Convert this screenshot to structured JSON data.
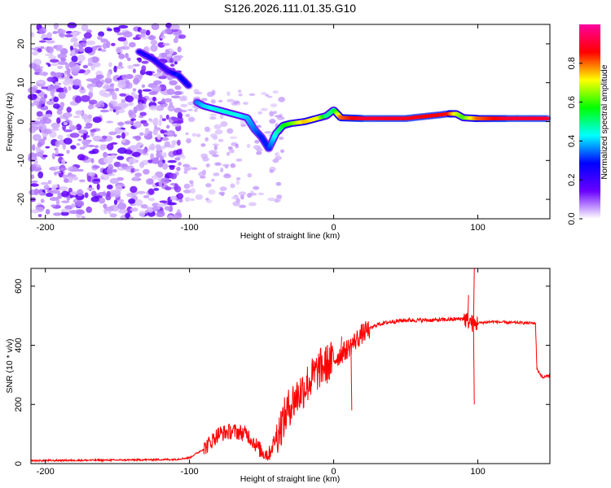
{
  "chart_data": [
    {
      "type": "heatmap",
      "title": "S126.2026.111.01.35.G10",
      "xlabel": "Height of straight line (km)",
      "ylabel": "Frequency (Hz)",
      "xlim": [
        -210,
        150
      ],
      "ylim": [
        -25,
        25
      ],
      "xticks": [
        -200,
        -100,
        0,
        100
      ],
      "yticks": [
        -20,
        -10,
        0,
        10,
        20
      ],
      "colorbar": {
        "label": "Normalized spectral amplitude",
        "range": [
          0.0,
          1.0
        ],
        "ticks": [
          "0.0",
          "0.2",
          "0.4",
          "0.6",
          "0.8"
        ],
        "colormap": [
          "#ffffff",
          "#6a00ff",
          "#0000ff",
          "#00ffff",
          "#00ff00",
          "#ffff00",
          "#ff0000",
          "#ff00a0"
        ]
      },
      "ridge": {
        "x": [
          -95,
          -90,
          -80,
          -70,
          -60,
          -55,
          -50,
          -45,
          -40,
          -35,
          -30,
          -20,
          -10,
          -5,
          0,
          5,
          20,
          50,
          80,
          85,
          90,
          100,
          120,
          150
        ],
        "freq": [
          5,
          4,
          3,
          2,
          1,
          -2,
          -4,
          -7,
          -3,
          -1,
          -0.5,
          0,
          1,
          1.5,
          3,
          1,
          0.8,
          0.8,
          2,
          2,
          1,
          0.8,
          0.8,
          0.8
        ],
        "amplitude": [
          0.35,
          0.4,
          0.45,
          0.45,
          0.4,
          0.35,
          0.3,
          0.3,
          0.45,
          0.55,
          0.6,
          0.75,
          0.7,
          0.5,
          0.5,
          0.8,
          0.9,
          0.88,
          0.85,
          0.7,
          0.6,
          0.8,
          0.9,
          0.9
        ]
      },
      "upper_branch": {
        "x": [
          -135,
          -125,
          -115,
          -108,
          -100
        ],
        "freq": [
          18,
          16,
          13,
          12,
          9
        ],
        "amplitude": [
          0.25,
          0.25,
          0.2,
          0.3,
          0.25
        ]
      },
      "noise_region": [
        -210,
        -105
      ]
    },
    {
      "type": "line",
      "xlabel": "Height of straight line (km)",
      "ylabel": "SNR (10 * v/v)",
      "xlim": [
        -210,
        150
      ],
      "ylim": [
        0,
        660
      ],
      "xticks": [
        -200,
        -100,
        0,
        100
      ],
      "yticks": [
        0,
        200,
        400,
        600
      ],
      "series": [
        {
          "name": "SNR",
          "color": "#ff0000",
          "x": [
            -210,
            -150,
            -110,
            -100,
            -90,
            -80,
            -70,
            -60,
            -55,
            -50,
            -45,
            -40,
            -30,
            -20,
            -10,
            0,
            10,
            20,
            30,
            40,
            50,
            60,
            70,
            80,
            90,
            95,
            97,
            100,
            110,
            120,
            140,
            141,
            145,
            150
          ],
          "y": [
            10,
            12,
            14,
            20,
            50,
            100,
            110,
            100,
            70,
            40,
            30,
            90,
            200,
            260,
            320,
            350,
            390,
            440,
            470,
            480,
            485,
            485,
            485,
            487,
            490,
            480,
            470,
            475,
            480,
            477,
            475,
            320,
            290,
            300
          ],
          "spikes": [
            {
              "x": 97,
              "y": 660
            },
            {
              "x": 97,
              "y": 200
            },
            {
              "x": 93,
              "y": 570
            },
            {
              "x": 12,
              "y": 180
            },
            {
              "x": 5,
              "y": 430
            }
          ]
        }
      ]
    }
  ]
}
